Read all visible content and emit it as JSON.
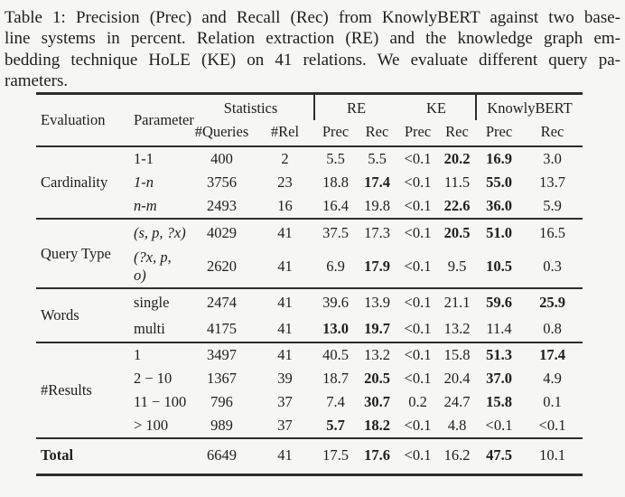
{
  "caption": {
    "lines": [
      "Table 1: Precision (Prec) and Recall (Rec) from KnowlyBERT against two base-",
      "line systems in percent. Relation extraction (RE) and the knowledge graph em-",
      "bedding technique HoLE (KE) on 41 relations. We evaluate different query pa-",
      "rameters."
    ]
  },
  "table": {
    "header": {
      "evaluation": "Evaluation",
      "parameter": "Parameter",
      "groups": [
        "Statistics",
        "RE",
        "KE",
        "KnowlyBERT"
      ],
      "subs": [
        "#Queries",
        "#Rel",
        "Prec",
        "Rec",
        "Prec",
        "Rec",
        "Prec",
        "Rec"
      ]
    },
    "sections": [
      {
        "label": "Cardinality",
        "rows": [
          {
            "param": "1-1",
            "values": [
              "400",
              "2",
              "5.5",
              "5.5",
              "<0.1",
              "20.2",
              "16.9",
              "3.0"
            ],
            "bold_cols": [
              5,
              6
            ]
          },
          {
            "param": "1-n",
            "values": [
              "3756",
              "23",
              "18.8",
              "17.4",
              "<0.1",
              "11.5",
              "55.0",
              "13.7"
            ],
            "bold_cols": [
              3,
              6
            ]
          },
          {
            "param": "n-m",
            "values": [
              "2493",
              "16",
              "16.4",
              "19.8",
              "<0.1",
              "22.6",
              "36.0",
              "5.9"
            ],
            "bold_cols": [
              5,
              6
            ]
          }
        ]
      },
      {
        "label": "Query Type",
        "rows": [
          {
            "param": "(s, p, ?x)",
            "values": [
              "4029",
              "41",
              "37.5",
              "17.3",
              "<0.1",
              "20.5",
              "51.0",
              "16.5"
            ],
            "bold_cols": [
              5,
              6
            ]
          },
          {
            "param": "(?x, p, o)",
            "values": [
              "2620",
              "41",
              "6.9",
              "17.9",
              "<0.1",
              "9.5",
              "10.5",
              "0.3"
            ],
            "bold_cols": [
              3,
              6
            ]
          }
        ]
      },
      {
        "label": "Words",
        "rows": [
          {
            "param": "single",
            "values": [
              "2474",
              "41",
              "39.6",
              "13.9",
              "<0.1",
              "21.1",
              "59.6",
              "25.9"
            ],
            "bold_cols": [
              6,
              7
            ]
          },
          {
            "param": "multi",
            "values": [
              "4175",
              "41",
              "13.0",
              "19.7",
              "<0.1",
              "13.2",
              "11.4",
              "0.8"
            ],
            "bold_cols": [
              2,
              3
            ]
          }
        ]
      },
      {
        "label": "#Results",
        "rows": [
          {
            "param": "1",
            "values": [
              "3497",
              "41",
              "40.5",
              "13.2",
              "<0.1",
              "15.8",
              "51.3",
              "17.4"
            ],
            "bold_cols": [
              6,
              7
            ]
          },
          {
            "param": "2 − 10",
            "values": [
              "1367",
              "39",
              "18.7",
              "20.5",
              "<0.1",
              "20.4",
              "37.0",
              "4.9"
            ],
            "bold_cols": [
              3,
              6
            ]
          },
          {
            "param": "11 − 100",
            "values": [
              "796",
              "37",
              "7.4",
              "30.7",
              "0.2",
              "24.7",
              "15.8",
              "0.1"
            ],
            "bold_cols": [
              3,
              6
            ]
          },
          {
            "param": "> 100",
            "values": [
              "989",
              "37",
              "5.7",
              "18.2",
              "<0.1",
              "4.8",
              "<0.1",
              "<0.1"
            ],
            "bold_cols": [
              2,
              3
            ]
          }
        ]
      }
    ],
    "total": {
      "label": "Total",
      "values": [
        "6649",
        "41",
        "17.5",
        "17.6",
        "<0.1",
        "16.2",
        "47.5",
        "10.1"
      ],
      "bold_cols": [
        3,
        6
      ]
    }
  },
  "colors": {
    "background": "#f6f6f4",
    "text": "#1e1e1e",
    "rule": "#2e2e2e"
  }
}
